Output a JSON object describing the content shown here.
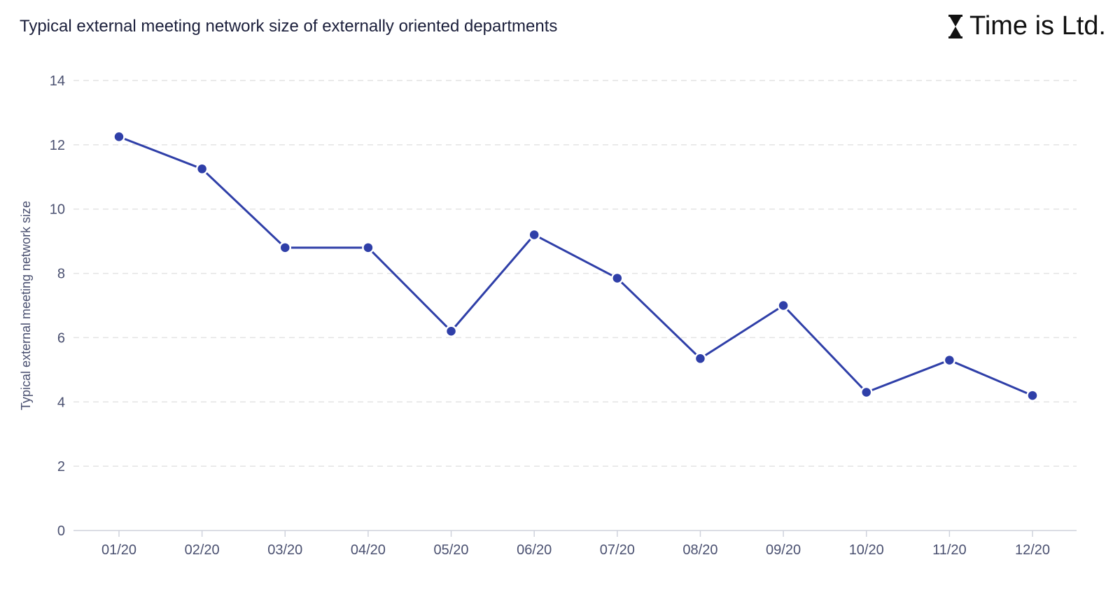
{
  "header": {
    "title": "Typical external meeting network size of externally oriented departments",
    "brand": "Time is Ltd.",
    "brand_icon": "hourglass-icon"
  },
  "colors": {
    "line": "#2f3fa8",
    "marker": "#2f3fa8",
    "grid": "#e3e3e3",
    "axis": "#cfd2dc",
    "text": "#4a5070",
    "title": "#1b1f3b"
  },
  "chart_data": {
    "type": "line",
    "title": "Typical external meeting network size of externally oriented departments",
    "xlabel": "",
    "ylabel": "Typical external meeting network size",
    "categories": [
      "01/20",
      "02/20",
      "03/20",
      "04/20",
      "05/20",
      "06/20",
      "07/20",
      "08/20",
      "09/20",
      "10/20",
      "11/20",
      "12/20"
    ],
    "series": [
      {
        "values": [
          12.25,
          11.25,
          8.8,
          8.8,
          6.2,
          9.2,
          7.85,
          5.35,
          7.0,
          4.3,
          5.3,
          4.2
        ]
      }
    ],
    "ylim": [
      0,
      14
    ],
    "yticks": [
      0,
      2,
      4,
      6,
      8,
      10,
      12,
      14
    ],
    "grid": true,
    "grid_style": "dashed",
    "legend": "none",
    "markers": true
  }
}
